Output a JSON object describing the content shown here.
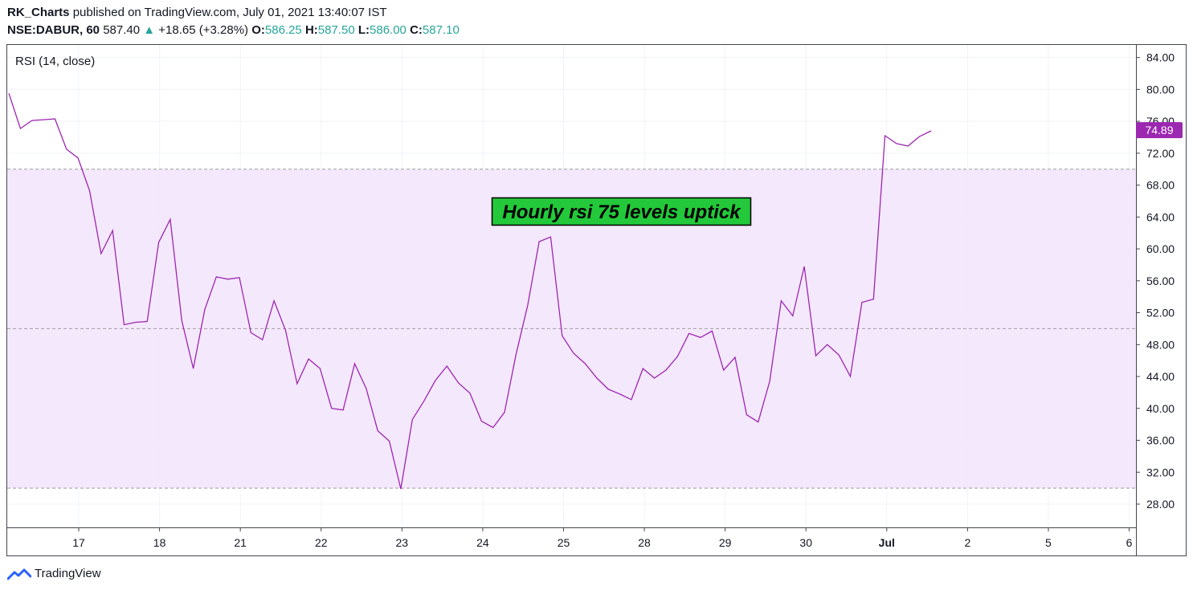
{
  "header": {
    "author": "RK_Charts",
    "published": "published on TradingView.com, July 01, 2021 13:40:07 IST",
    "symbol": "NSE:DABUR, 60",
    "price": "587.40",
    "change_arrow": "▲",
    "change": "+18.65 (+3.28%)",
    "o_label": "O:",
    "o_value": "586.25",
    "h_label": "H:",
    "h_value": "587.50",
    "l_label": "L:",
    "l_value": "586.00",
    "c_label": "C:",
    "c_value": "587.10"
  },
  "footer": {
    "brand": "TradingView",
    "logo_icon": "tradingview-logo-icon"
  },
  "colors": {
    "rsi_line": "#9c27b0",
    "band_fill": "#f3e5fc",
    "price_tag": "#9c27b0",
    "annotation_fill": "#23c93a",
    "positive": "#26a69a"
  },
  "chart_data": {
    "type": "line",
    "indicator_label": "RSI (14, close)",
    "y_ticks": [
      "84.00",
      "80.00",
      "76.00",
      "72.00",
      "68.00",
      "64.00",
      "60.00",
      "56.00",
      "52.00",
      "48.00",
      "44.00",
      "40.00",
      "36.00",
      "32.00",
      "28.00"
    ],
    "ylim": [
      25,
      85.5
    ],
    "band": {
      "upper": 70,
      "middle": 50,
      "lower": 30
    },
    "x_ticks": [
      "17",
      "18",
      "21",
      "22",
      "23",
      "24",
      "25",
      "28",
      "29",
      "30",
      "Jul",
      "2",
      "5",
      "6"
    ],
    "current_value_label": "74.89",
    "annotation": "Hourly rsi 75 levels uptick",
    "series": [
      {
        "x": [
          0,
          1,
          2,
          3,
          4,
          5,
          6,
          7,
          8,
          9,
          10,
          11,
          12,
          13,
          14,
          15,
          16,
          17,
          18,
          19,
          20,
          21,
          22,
          23,
          24,
          25,
          26,
          27,
          28,
          29,
          30,
          31,
          32,
          33,
          34,
          35,
          36,
          37,
          38,
          39,
          40,
          41,
          42,
          43,
          44,
          45,
          46,
          47,
          48,
          49,
          50,
          51,
          52,
          53,
          54,
          55,
          56,
          57,
          58,
          59,
          60,
          61,
          62,
          63,
          64,
          65,
          66,
          67,
          68,
          69,
          70,
          71,
          72,
          73,
          74,
          75,
          76,
          77,
          78,
          79,
          80
        ],
        "values": [
          79.5,
          75.1,
          76.1,
          76.2,
          76.3,
          72.5,
          71.4,
          67.3,
          59.4,
          62.3,
          50.5,
          50.8,
          50.9,
          60.8,
          63.7,
          51.0,
          45.0,
          52.4,
          56.5,
          56.2,
          56.4,
          49.5,
          48.6,
          53.5,
          49.8,
          43.1,
          46.2,
          45.0,
          40.0,
          39.8,
          45.6,
          42.5,
          37.2,
          35.9,
          29.9,
          38.6,
          40.9,
          43.5,
          45.3,
          43.2,
          41.9,
          38.4,
          37.6,
          39.5,
          46.8,
          52.9,
          60.9,
          61.5,
          49.1,
          46.9,
          45.6,
          43.8,
          42.4,
          41.8,
          41.1,
          45.0,
          43.8,
          44.8,
          46.5,
          49.4,
          48.9,
          49.7,
          44.8,
          46.4,
          39.2,
          38.3,
          43.4,
          53.5,
          51.6,
          57.8,
          46.6,
          48.0,
          46.7,
          44.0,
          53.3,
          53.7,
          74.2,
          73.2,
          72.9,
          74.1,
          74.8
        ]
      }
    ]
  }
}
